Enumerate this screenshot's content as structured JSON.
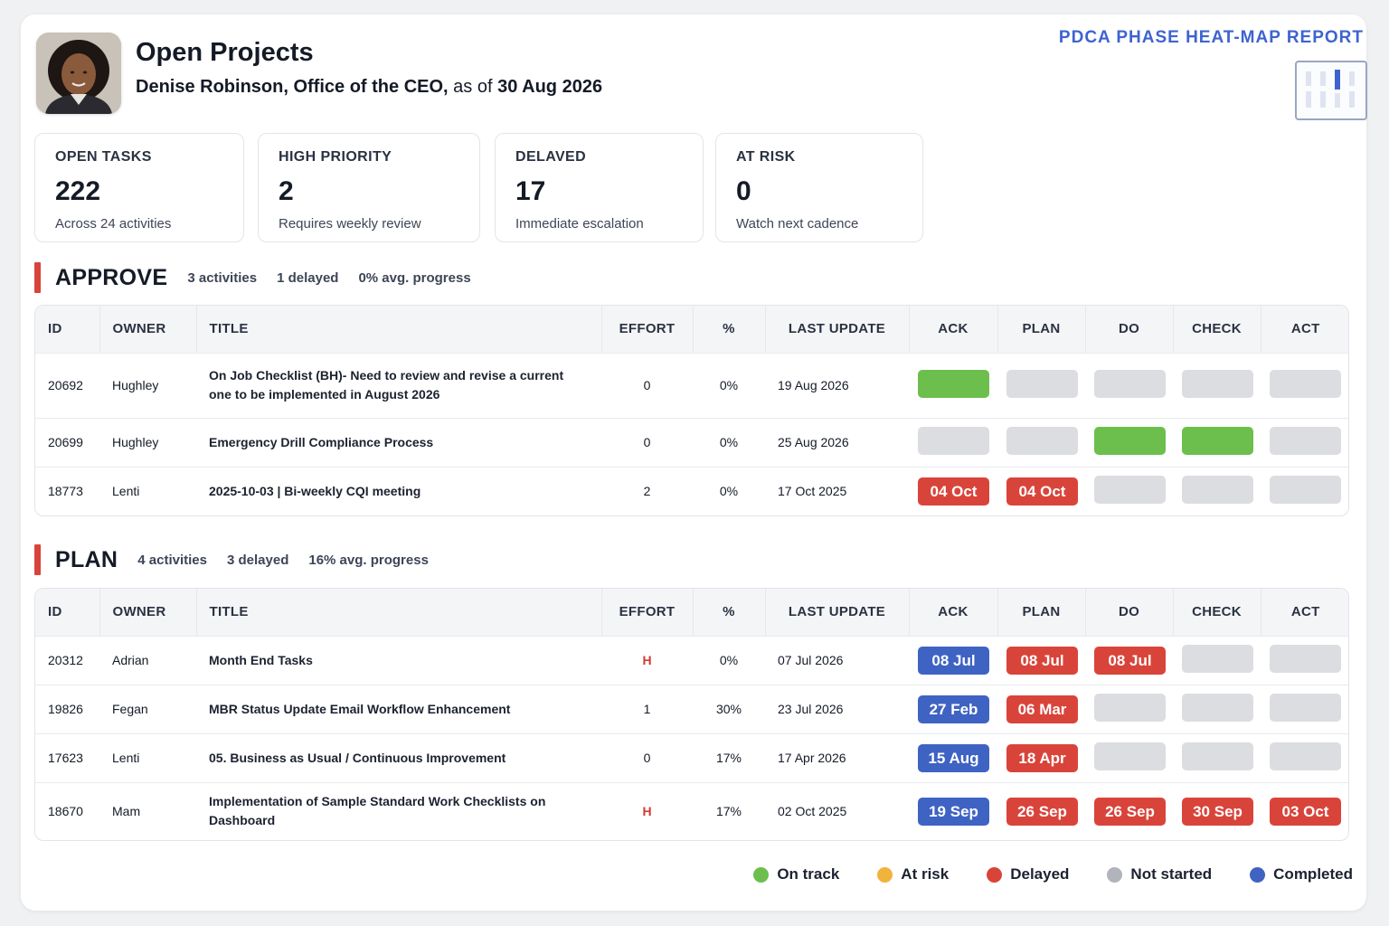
{
  "header": {
    "title": "Open Projects",
    "subtitle_name": "Denise Robinson, Office of the CEO,",
    "subtitle_asof": "as of",
    "subtitle_date": "30 Aug 2026",
    "report_label": "PDCA PHASE HEAT-MAP REPORT",
    "avatar_icon": "person-avatar",
    "report_icon": "bar-chart-icon"
  },
  "stats": [
    {
      "label": "OPEN TASKS",
      "value": "222",
      "note": "Across 24 activities"
    },
    {
      "label": "HIGH PRIORITY",
      "value": "2",
      "note": "Requires weekly review"
    },
    {
      "label": "DELAVED",
      "value": "17",
      "note": "Immediate escalation"
    },
    {
      "label": "AT RISK",
      "value": "0",
      "note": "Watch next cadence"
    }
  ],
  "columns": {
    "id": "ID",
    "owner": "OWNER",
    "title": "TITLE",
    "effort": "EFFORT",
    "pct": "%",
    "last_update": "LAST UPDATE",
    "ack": "ACK",
    "plan": "PLAN",
    "do": "DO",
    "check": "CHECK",
    "act": "ACT"
  },
  "sections": [
    {
      "title": "APPROVE",
      "activities": "3 activities",
      "delayed": "1 delayed",
      "progress": "0% avg. progress",
      "rows": [
        {
          "id": "20692",
          "owner": "Hughley",
          "title": "On Job Checklist (BH)- Need to review and revise a current one to be implemented in August 2026",
          "effort": "0",
          "pct": "0%",
          "last_update": "19 Aug 2026",
          "phases": [
            {
              "status": "green",
              "label": ""
            },
            {
              "status": "grey",
              "label": ""
            },
            {
              "status": "grey",
              "label": ""
            },
            {
              "status": "grey",
              "label": ""
            },
            {
              "status": "grey",
              "label": ""
            }
          ]
        },
        {
          "id": "20699",
          "owner": "Hughley",
          "title": "Emergency Drill Compliance Process",
          "effort": "0",
          "pct": "0%",
          "last_update": "25 Aug 2026",
          "phases": [
            {
              "status": "grey",
              "label": ""
            },
            {
              "status": "grey",
              "label": ""
            },
            {
              "status": "green",
              "label": ""
            },
            {
              "status": "green",
              "label": ""
            },
            {
              "status": "grey",
              "label": ""
            }
          ]
        },
        {
          "id": "18773",
          "owner": "Lenti",
          "title": "2025-10-03 | Bi-weekly CQI meeting",
          "effort": "2",
          "pct": "0%",
          "last_update": "17 Oct 2025",
          "phases": [
            {
              "status": "red",
              "label": "04 Oct"
            },
            {
              "status": "red",
              "label": "04 Oct"
            },
            {
              "status": "grey",
              "label": ""
            },
            {
              "status": "grey",
              "label": ""
            },
            {
              "status": "grey",
              "label": ""
            }
          ]
        }
      ]
    },
    {
      "title": "PLAN",
      "activities": "4 activities",
      "delayed": "3 delayed",
      "progress": "16% avg. progress",
      "rows": [
        {
          "id": "20312",
          "owner": "Adrian",
          "title": "Month End Tasks",
          "effort": "H",
          "pct": "0%",
          "last_update": "07 Jul 2026",
          "phases": [
            {
              "status": "blue",
              "label": "08 Jul"
            },
            {
              "status": "red",
              "label": "08 Jul"
            },
            {
              "status": "red",
              "label": "08 Jul"
            },
            {
              "status": "grey",
              "label": ""
            },
            {
              "status": "grey",
              "label": ""
            }
          ]
        },
        {
          "id": "19826",
          "owner": "Fegan",
          "title": "MBR Status Update Email Workflow Enhancement",
          "effort": "1",
          "pct": "30%",
          "last_update": "23 Jul 2026",
          "phases": [
            {
              "status": "blue",
              "label": "27 Feb"
            },
            {
              "status": "red",
              "label": "06 Mar"
            },
            {
              "status": "grey",
              "label": ""
            },
            {
              "status": "grey",
              "label": ""
            },
            {
              "status": "grey",
              "label": ""
            }
          ]
        },
        {
          "id": "17623",
          "owner": "Lenti",
          "title": "05. Business as Usual / Continuous Improvement",
          "effort": "0",
          "pct": "17%",
          "last_update": "17 Apr 2026",
          "phases": [
            {
              "status": "blue",
              "label": "15 Aug"
            },
            {
              "status": "red",
              "label": "18 Apr"
            },
            {
              "status": "grey",
              "label": ""
            },
            {
              "status": "grey",
              "label": ""
            },
            {
              "status": "grey",
              "label": ""
            }
          ]
        },
        {
          "id": "18670",
          "owner": "Mam",
          "title": "Implementation of Sample Standard Work Checklists on Dashboard",
          "effort": "H",
          "pct": "17%",
          "last_update": "02 Oct 2025",
          "phases": [
            {
              "status": "blue",
              "label": "19 Sep"
            },
            {
              "status": "red",
              "label": "26 Sep"
            },
            {
              "status": "red",
              "label": "26 Sep"
            },
            {
              "status": "red",
              "label": "30 Sep"
            },
            {
              "status": "red",
              "label": "03 Oct"
            }
          ]
        }
      ]
    }
  ],
  "legend": [
    {
      "label": "On track",
      "color": "#6cbf4d"
    },
    {
      "label": "At risk",
      "color": "#f2b33d"
    },
    {
      "label": "Delayed",
      "color": "#d9443a"
    },
    {
      "label": "Not started",
      "color": "#b1b4bb"
    },
    {
      "label": "Completed",
      "color": "#3f63c3"
    }
  ]
}
